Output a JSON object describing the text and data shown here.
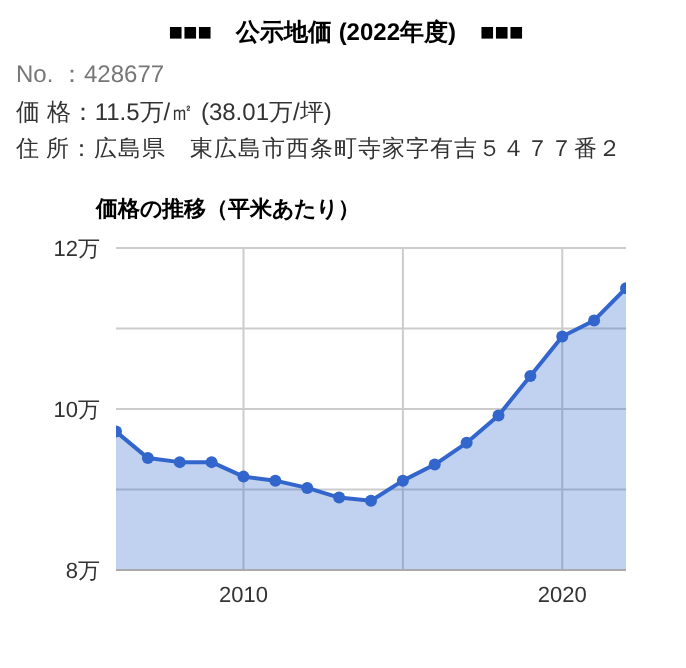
{
  "chart_data": {
    "type": "area",
    "title": "■■■　公示地価 (2022年度)　■■■",
    "subtitle": "価格の推移（平米あたり）",
    "annotations": [
      "No. ：428677",
      "価 格：11.5万/㎡ (38.01万/坪)",
      "住 所：広島県　東広島市西条町寺家字有吉５４７７番２"
    ],
    "x": [
      2006,
      2007,
      2008,
      2009,
      2010,
      2011,
      2012,
      2013,
      2014,
      2015,
      2016,
      2017,
      2018,
      2019,
      2020,
      2021,
      2022
    ],
    "series": [
      {
        "color": "#3366cc",
        "values": [
          9.72,
          9.39,
          9.34,
          9.34,
          9.16,
          9.11,
          9.02,
          8.9,
          8.86,
          9.11,
          9.31,
          9.58,
          9.92,
          10.41,
          10.9,
          11.1,
          11.5
        ]
      }
    ],
    "xlim": [
      2006,
      2022
    ],
    "xticks": [
      2010,
      {
        "value": 2015,
        "label": null
      },
      2020
    ],
    "ylim": [
      8,
      12
    ],
    "yticks": [
      {
        "value": 8,
        "label": "8万"
      },
      {
        "value": 9,
        "label": null
      },
      {
        "value": 10,
        "label": "10万"
      },
      {
        "value": 11,
        "label": null
      },
      {
        "value": 12,
        "label": "12万"
      }
    ],
    "grid": true,
    "marker": "circle"
  }
}
